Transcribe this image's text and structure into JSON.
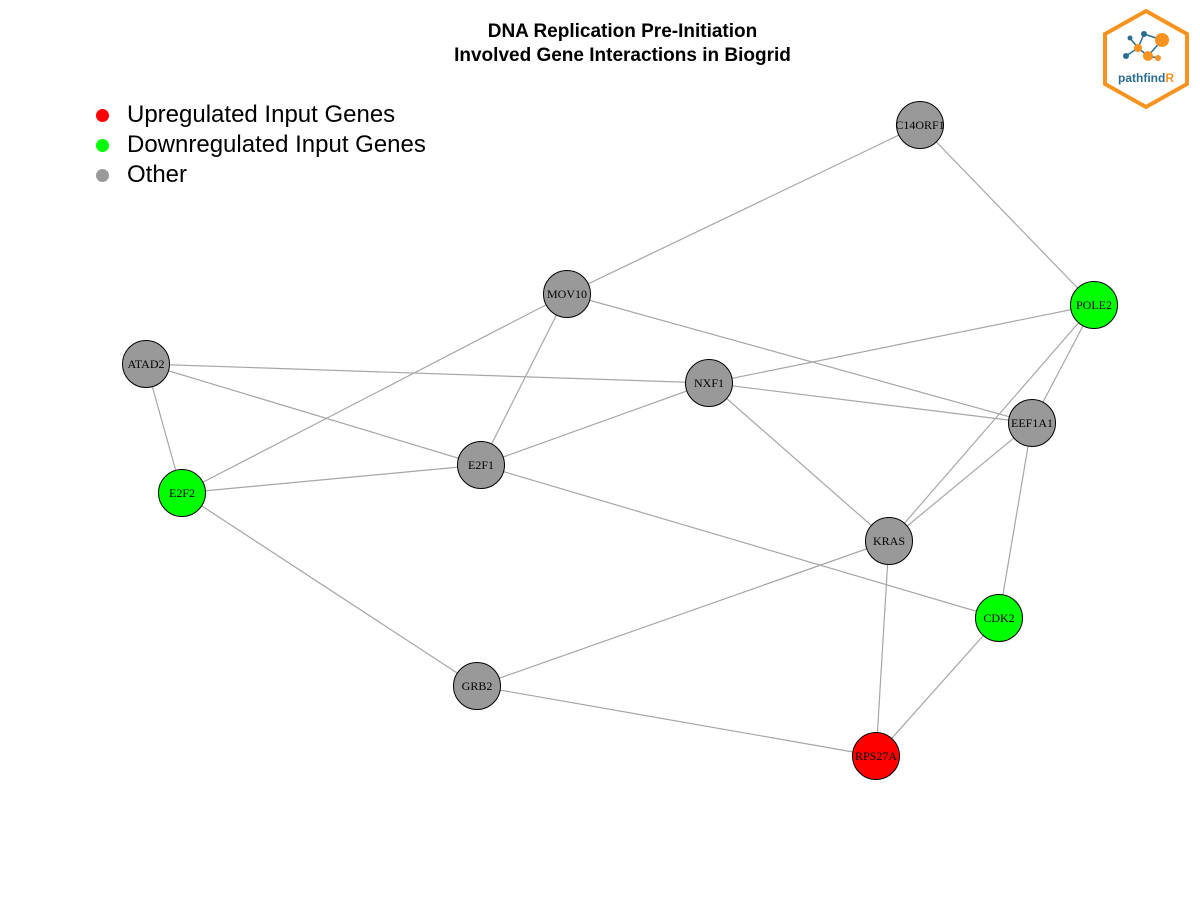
{
  "title": {
    "line1": "DNA Replication Pre-Initiation",
    "line2": "Involved Gene Interactions in Biogrid"
  },
  "legend": [
    {
      "label": "Upregulated Input Genes",
      "color": "#ff0000"
    },
    {
      "label": "Downregulated Input Genes",
      "color": "#00ff00"
    },
    {
      "label": "Other",
      "color": "#999999"
    }
  ],
  "colors": {
    "up": "#ff0000",
    "down": "#00ff00",
    "other": "#999999",
    "edge": "#a6a6a6",
    "logo_orange": "#f7931e",
    "logo_blue": "#2b6d8f"
  },
  "logo": {
    "text_main": "pathfind",
    "text_accent": "R",
    "icon": "network-hexagon-icon"
  },
  "nodes": [
    {
      "id": "C14ORF1",
      "status": "other"
    },
    {
      "id": "POLE2",
      "status": "down"
    },
    {
      "id": "MOV10",
      "status": "other"
    },
    {
      "id": "ATAD2",
      "status": "other"
    },
    {
      "id": "NXF1",
      "status": "other"
    },
    {
      "id": "EEF1A1",
      "status": "other"
    },
    {
      "id": "E2F1",
      "status": "other"
    },
    {
      "id": "E2F2",
      "status": "down"
    },
    {
      "id": "KRAS",
      "status": "other"
    },
    {
      "id": "CDK2",
      "status": "down"
    },
    {
      "id": "GRB2",
      "status": "other"
    },
    {
      "id": "RPS27A",
      "status": "up"
    }
  ],
  "edges": [
    [
      "C14ORF1",
      "MOV10"
    ],
    [
      "C14ORF1",
      "POLE2"
    ],
    [
      "MOV10",
      "E2F2"
    ],
    [
      "MOV10",
      "E2F1"
    ],
    [
      "MOV10",
      "EEF1A1"
    ],
    [
      "POLE2",
      "NXF1"
    ],
    [
      "POLE2",
      "KRAS"
    ],
    [
      "POLE2",
      "EEF1A1"
    ],
    [
      "ATAD2",
      "NXF1"
    ],
    [
      "ATAD2",
      "E2F1"
    ],
    [
      "ATAD2",
      "E2F2"
    ],
    [
      "NXF1",
      "E2F1"
    ],
    [
      "NXF1",
      "EEF1A1"
    ],
    [
      "NXF1",
      "KRAS"
    ],
    [
      "E2F2",
      "E2F1"
    ],
    [
      "E2F2",
      "GRB2"
    ],
    [
      "E2F1",
      "CDK2"
    ],
    [
      "EEF1A1",
      "KRAS"
    ],
    [
      "EEF1A1",
      "CDK2"
    ],
    [
      "KRAS",
      "GRB2"
    ],
    [
      "KRAS",
      "RPS27A"
    ],
    [
      "CDK2",
      "RPS27A"
    ],
    [
      "GRB2",
      "RPS27A"
    ]
  ]
}
